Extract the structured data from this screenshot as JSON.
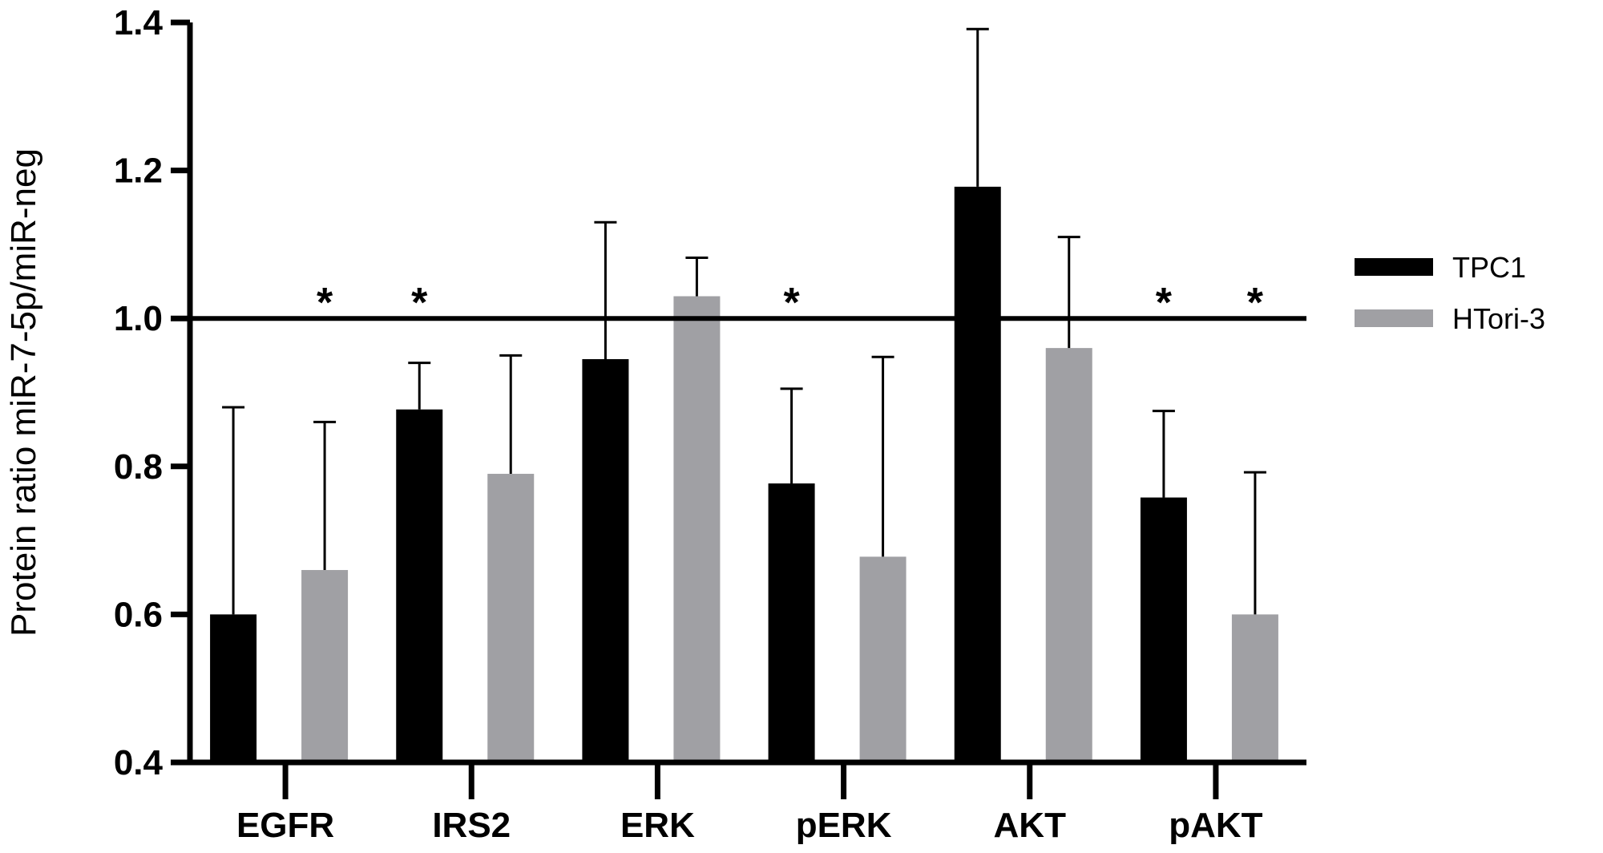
{
  "chart_data": {
    "type": "bar",
    "ylabel": "Protein ratio miR-7-5p/miR-neg",
    "ylim": [
      0.4,
      1.4
    ],
    "yticks": [
      "0.4",
      "0.6",
      "0.8",
      "1.0",
      "1.2",
      "1.4"
    ],
    "reference_line": 1.0,
    "categories": [
      "EGFR",
      "IRS2",
      "ERK",
      "pERK",
      "AKT",
      "pAKT"
    ],
    "series": [
      {
        "name": "TPC1",
        "color": "#000000",
        "values": [
          0.6,
          0.877,
          0.945,
          0.777,
          1.178,
          0.758
        ],
        "error": [
          0.28,
          0.063,
          0.185,
          0.128,
          0.213,
          0.117
        ]
      },
      {
        "name": "HTori-3",
        "color": "#a0a0a4",
        "values": [
          0.66,
          0.79,
          1.03,
          0.678,
          0.96,
          0.6
        ],
        "error": [
          0.2,
          0.16,
          0.052,
          0.27,
          0.15,
          0.192
        ]
      }
    ],
    "significance": [
      {
        "category": "EGFR",
        "series": "HTori-3",
        "label": "*"
      },
      {
        "category": "IRS2",
        "series": "TPC1",
        "label": "*"
      },
      {
        "category": "pERK",
        "series": "TPC1",
        "label": "*"
      },
      {
        "category": "pAKT",
        "series": "TPC1",
        "label": "*"
      },
      {
        "category": "pAKT",
        "series": "HTori-3",
        "label": "*"
      }
    ],
    "legend_position": "right"
  }
}
